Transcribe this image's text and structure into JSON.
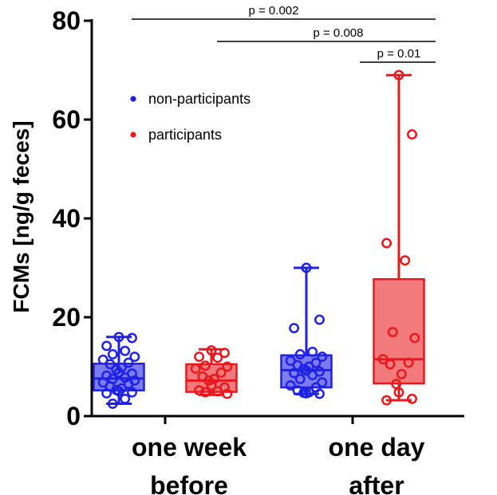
{
  "chart_data": {
    "type": "box",
    "ylabel": "FCMs [ng/g feces]",
    "ylim": [
      0,
      80
    ],
    "yticks": [
      0,
      20,
      40,
      60,
      80
    ],
    "categories": [
      {
        "id": "before",
        "lines": [
          "one week",
          "before"
        ]
      },
      {
        "id": "after",
        "lines": [
          "one day",
          "after"
        ]
      }
    ],
    "legend": {
      "position": "upper-left",
      "entries": [
        {
          "name": "non-participants",
          "color": "#1f22e6"
        },
        {
          "name": "participants",
          "color": "#e8191e"
        }
      ]
    },
    "series": [
      {
        "name": "non-participants",
        "color": "#1f22e6",
        "fill": "#7d7cf0",
        "boxes": [
          {
            "category": "before",
            "min": 2.5,
            "q1": 5.2,
            "median": 7.6,
            "q3": 10.6,
            "max": 16,
            "points": [
              16,
              15.8,
              14.2,
              13.2,
              12.5,
              12,
              11.4,
              10.8,
              10.5,
              9.8,
              9.4,
              8.8,
              8.6,
              8.2,
              7.8,
              7.5,
              7.2,
              6.8,
              6.5,
              6,
              5.6,
              5.3,
              5,
              4.8,
              4.6,
              3.5,
              2.5
            ]
          },
          {
            "category": "after",
            "min": 4.5,
            "q1": 5.8,
            "median": 9.3,
            "q3": 12.3,
            "max": 30,
            "points": [
              30,
              19.5,
              17.8,
              13,
              12.5,
              12,
              11.2,
              10.8,
              10.3,
              10,
              9.5,
              9.2,
              9,
              8.7,
              8.3,
              7.5,
              6.8,
              6.2,
              5.8,
              5.2,
              4.8,
              4.7,
              4.6,
              4.5
            ]
          }
        ]
      },
      {
        "name": "participants",
        "color": "#e8191e",
        "fill": "#f37a7c",
        "boxes": [
          {
            "category": "before",
            "min": 4.3,
            "q1": 4.9,
            "median": 7.2,
            "q3": 10.5,
            "max": 13.5,
            "points": [
              13.3,
              12.8,
              12,
              11.8,
              10.2,
              10,
              9.6,
              8.8,
              8,
              7.5,
              7.2,
              6.2,
              5.8,
              5.2,
              5,
              4.8,
              4.5
            ]
          },
          {
            "category": "after",
            "min": 3.2,
            "q1": 6.6,
            "median": 11.5,
            "q3": 27.7,
            "max": 69,
            "points": [
              69,
              57,
              35,
              31.5,
              17,
              15.8,
              11.5,
              10.8,
              10.5,
              8.5,
              6.5,
              4.8,
              3.5,
              3.2
            ]
          }
        ]
      }
    ],
    "significance": [
      {
        "label": "p = 0.002"
      },
      {
        "label": "p = 0.008"
      },
      {
        "label": "p = 0.01"
      }
    ]
  }
}
